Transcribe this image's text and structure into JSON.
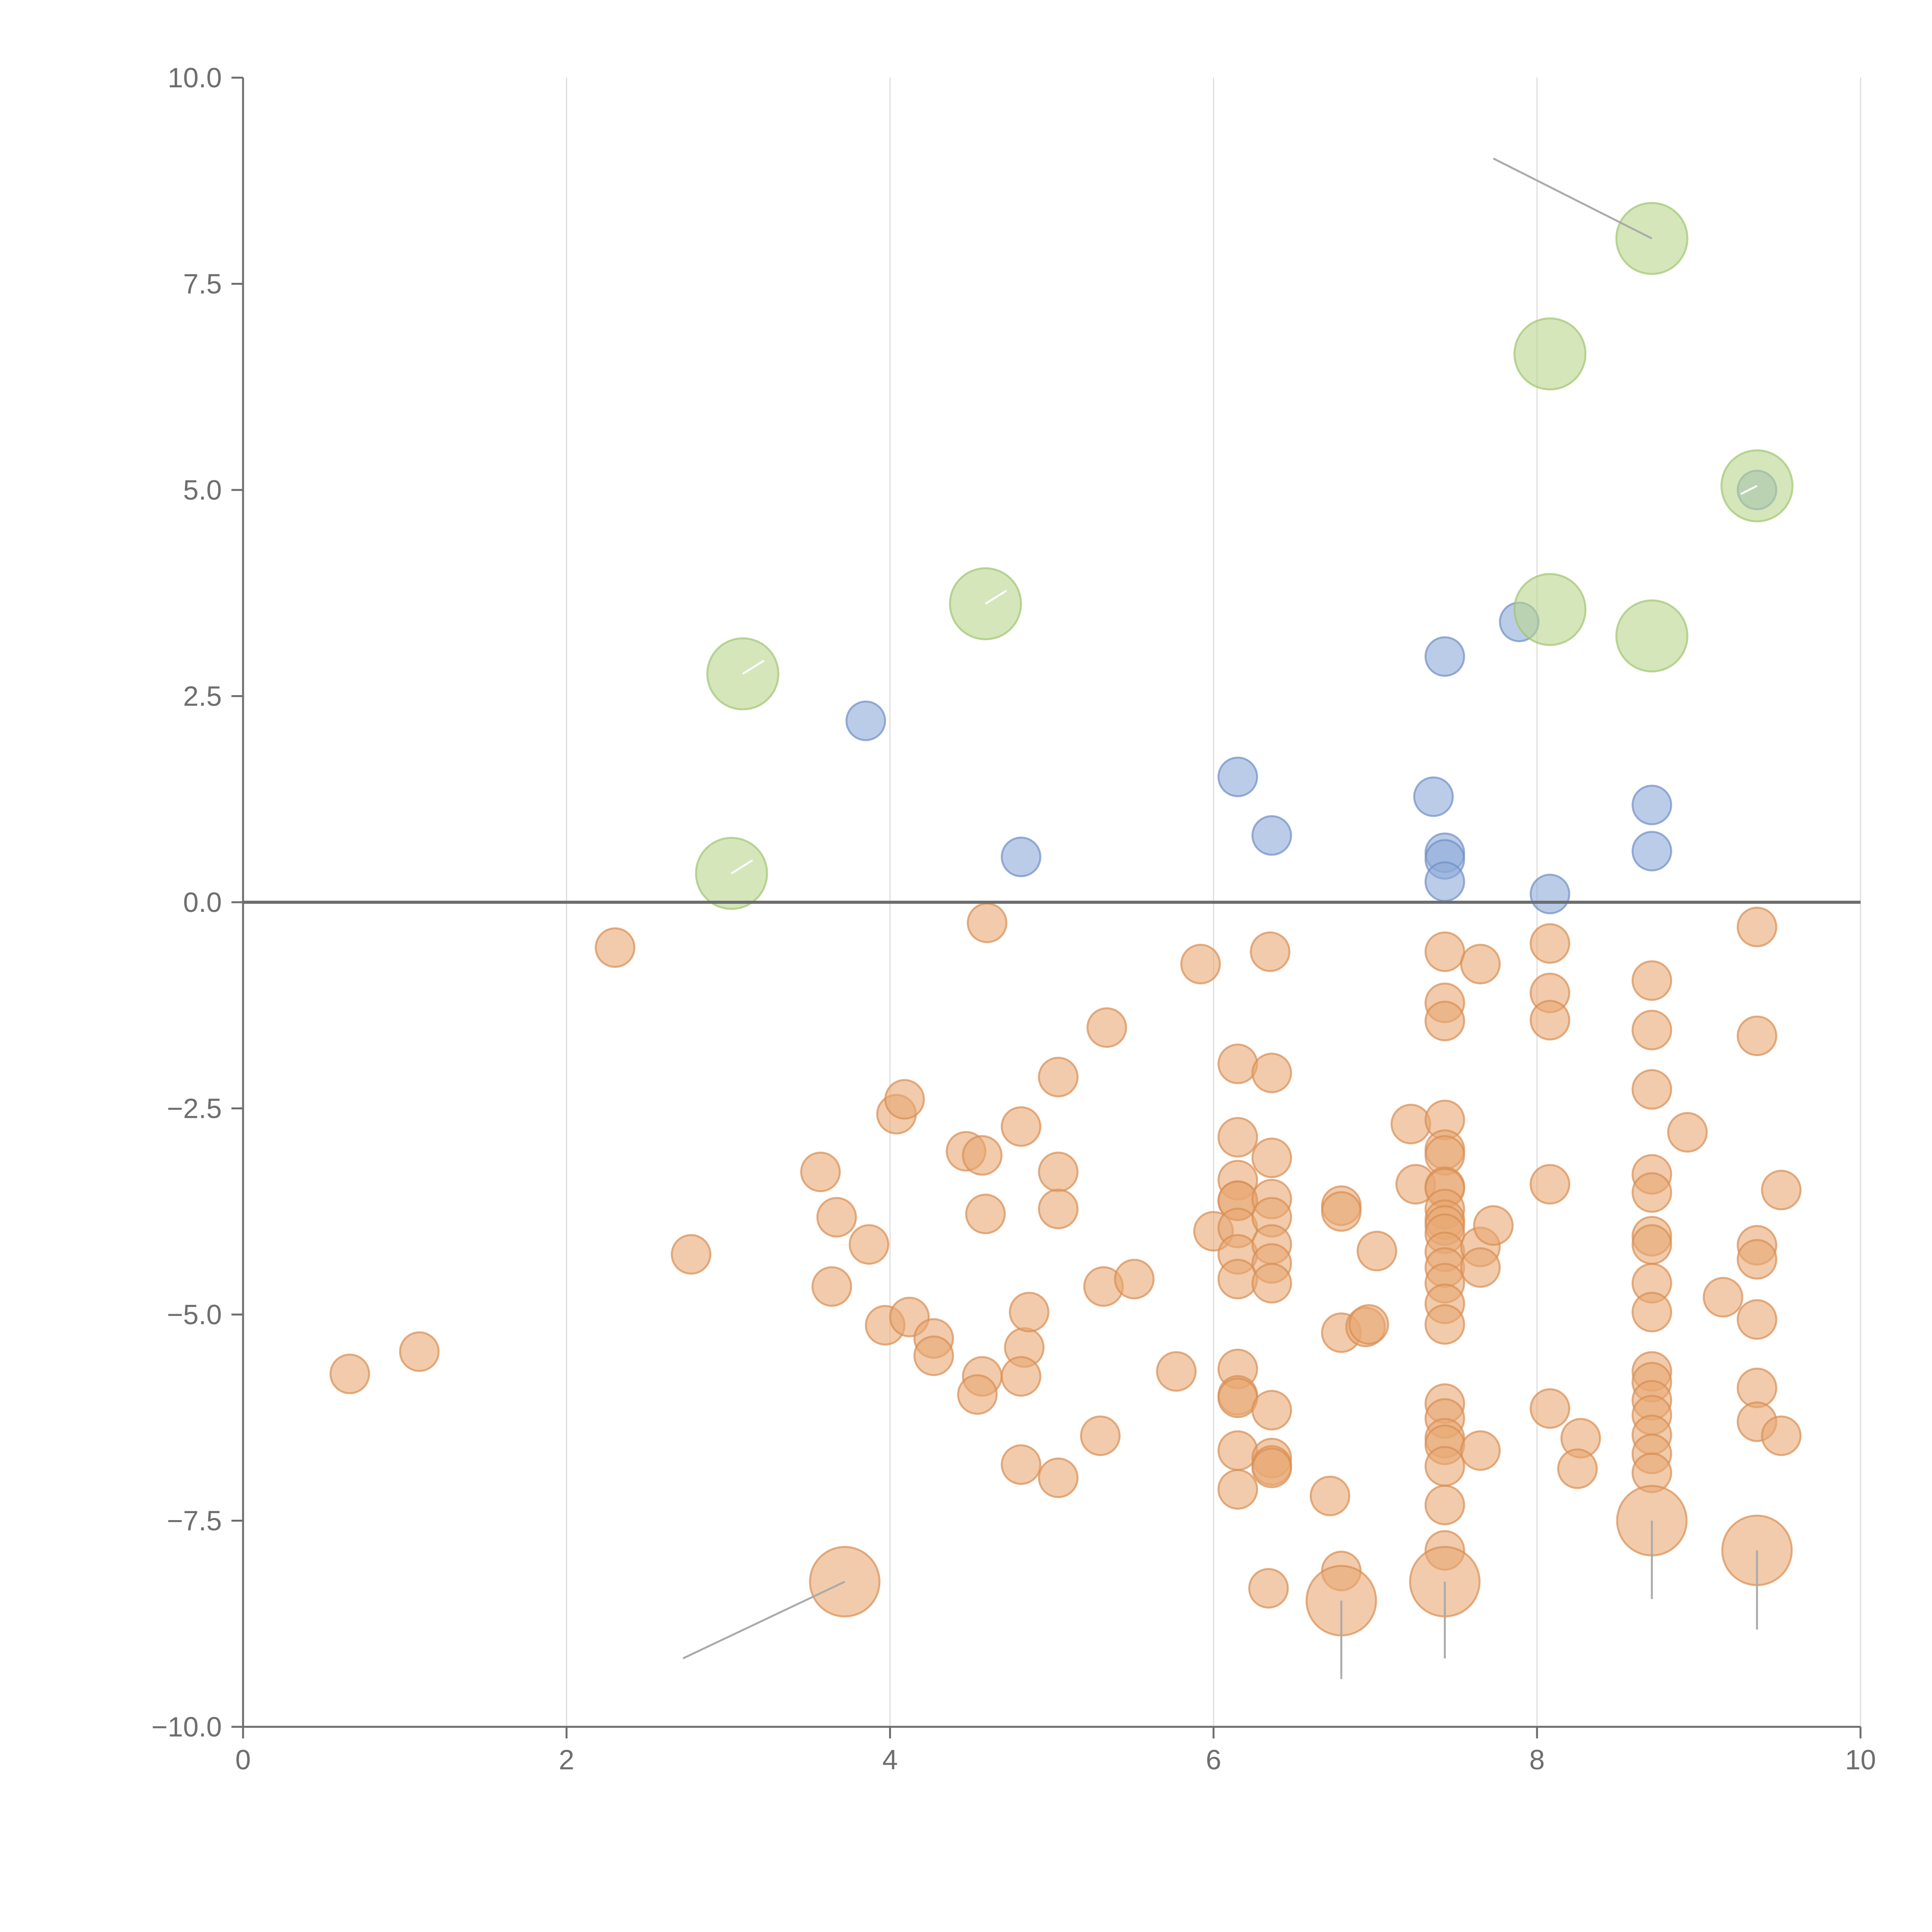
{
  "chart_data": {
    "type": "scatter",
    "title": "",
    "xlabel": "",
    "ylabel": "",
    "xlim": [
      0,
      10
    ],
    "ylim": [
      -10,
      10
    ],
    "x_ticks": [
      "0",
      "2",
      "4",
      "6",
      "8",
      "10"
    ],
    "y_ticks": [
      "−10.0",
      "−7.5",
      "−5.0",
      "−2.5",
      "0.0",
      "2.5",
      "5.0",
      "7.5",
      "10.0"
    ],
    "grid": "vertical lines only",
    "reference_line_y": 0,
    "colors": {
      "orange": "#e8a873",
      "blue": "#8eaad8",
      "green": "#b9d68e",
      "axis": "#6e6e6e",
      "grid": "#dddddd",
      "leader": "#aaaaaa"
    },
    "series": [
      {
        "name": "orange",
        "color": "#e8a873",
        "points": [
          [
            2.3,
            -0.55
          ],
          [
            4.6,
            -0.25
          ],
          [
            5.92,
            -0.75
          ],
          [
            6.35,
            -0.6
          ],
          [
            7.43,
            -0.6
          ],
          [
            7.65,
            -0.75
          ],
          [
            8.08,
            -0.5
          ],
          [
            9.36,
            -0.3
          ],
          [
            0.66,
            -5.72
          ],
          [
            1.09,
            -5.45
          ],
          [
            2.77,
            -4.27
          ],
          [
            3.57,
            -3.27
          ],
          [
            3.67,
            -3.82
          ],
          [
            3.87,
            -4.15
          ],
          [
            3.64,
            -4.66
          ],
          [
            3.97,
            -5.13
          ],
          [
            4.04,
            -2.57
          ],
          [
            4.09,
            -2.39
          ],
          [
            4.12,
            -5.03
          ],
          [
            4.27,
            -5.29
          ],
          [
            4.27,
            -5.5
          ],
          [
            4.47,
            -3.02
          ],
          [
            4.57,
            -3.07
          ],
          [
            4.59,
            -3.78
          ],
          [
            4.57,
            -5.75
          ],
          [
            4.54,
            -5.97
          ],
          [
            4.81,
            -2.72
          ],
          [
            4.83,
            -5.4
          ],
          [
            4.86,
            -4.97
          ],
          [
            4.81,
            -5.75
          ],
          [
            4.81,
            -6.82
          ],
          [
            5.04,
            -2.12
          ],
          [
            5.04,
            -3.27
          ],
          [
            5.04,
            -3.72
          ],
          [
            5.04,
            -6.98
          ],
          [
            5.34,
            -1.52
          ],
          [
            5.32,
            -4.66
          ],
          [
            5.51,
            -4.57
          ],
          [
            5.3,
            -6.47
          ],
          [
            5.77,
            -5.69
          ],
          [
            6.0,
            -3.99
          ],
          [
            6.15,
            -1.96
          ],
          [
            6.15,
            -2.85
          ],
          [
            6.15,
            -3.37
          ],
          [
            6.15,
            -3.62
          ],
          [
            6.15,
            -3.62
          ],
          [
            6.15,
            -3.95
          ],
          [
            6.15,
            -4.27
          ],
          [
            6.15,
            -4.57
          ],
          [
            6.15,
            -5.66
          ],
          [
            6.15,
            -5.98
          ],
          [
            6.15,
            -6.01
          ],
          [
            6.15,
            -6.65
          ],
          [
            6.15,
            -7.12
          ],
          [
            6.36,
            -2.07
          ],
          [
            6.36,
            -3.1
          ],
          [
            6.36,
            -3.6
          ],
          [
            6.36,
            -3.82
          ],
          [
            6.36,
            -4.15
          ],
          [
            6.36,
            -4.38
          ],
          [
            6.36,
            -4.62
          ],
          [
            6.36,
            -6.16
          ],
          [
            6.36,
            -6.74
          ],
          [
            6.36,
            -6.83
          ],
          [
            6.36,
            -6.86
          ],
          [
            6.34,
            -8.32
          ],
          [
            6.72,
            -7.2
          ],
          [
            6.79,
            -3.68
          ],
          [
            6.79,
            -3.75
          ],
          [
            6.79,
            -5.22
          ],
          [
            6.79,
            -8.11
          ],
          [
            6.94,
            -5.15
          ],
          [
            6.96,
            -5.12
          ],
          [
            7.01,
            -4.23
          ],
          [
            7.22,
            -2.69
          ],
          [
            7.25,
            -3.42
          ],
          [
            7.43,
            -1.22
          ],
          [
            7.43,
            -1.44
          ],
          [
            7.43,
            -2.64
          ],
          [
            7.43,
            -3.0
          ],
          [
            7.43,
            -3.07
          ],
          [
            7.43,
            -3.45
          ],
          [
            7.43,
            -3.47
          ],
          [
            7.43,
            -3.72
          ],
          [
            7.43,
            -3.85
          ],
          [
            7.43,
            -3.92
          ],
          [
            7.43,
            -4.02
          ],
          [
            7.43,
            -4.24
          ],
          [
            7.43,
            -4.43
          ],
          [
            7.43,
            -4.62
          ],
          [
            7.43,
            -4.87
          ],
          [
            7.43,
            -5.12
          ],
          [
            7.43,
            -6.08
          ],
          [
            7.43,
            -6.26
          ],
          [
            7.43,
            -6.5
          ],
          [
            7.43,
            -6.58
          ],
          [
            7.43,
            -6.84
          ],
          [
            7.43,
            -7.31
          ],
          [
            7.43,
            -7.86
          ],
          [
            7.65,
            -4.18
          ],
          [
            7.65,
            -4.43
          ],
          [
            7.65,
            -6.65
          ],
          [
            7.73,
            -3.92
          ],
          [
            8.08,
            -1.1
          ],
          [
            8.08,
            -1.43
          ],
          [
            8.08,
            -3.42
          ],
          [
            8.08,
            -6.14
          ],
          [
            8.27,
            -6.5
          ],
          [
            8.25,
            -6.87
          ],
          [
            8.71,
            -0.95
          ],
          [
            8.71,
            -1.55
          ],
          [
            8.71,
            -2.27
          ],
          [
            8.71,
            -3.3
          ],
          [
            8.71,
            -3.52
          ],
          [
            8.71,
            -4.05
          ],
          [
            8.71,
            -4.15
          ],
          [
            8.71,
            -4.62
          ],
          [
            8.71,
            -4.97
          ],
          [
            8.71,
            -5.69
          ],
          [
            8.71,
            -5.82
          ],
          [
            8.71,
            -6.04
          ],
          [
            8.71,
            -6.22
          ],
          [
            8.71,
            -6.46
          ],
          [
            8.71,
            -6.69
          ],
          [
            8.71,
            -6.92
          ],
          [
            8.93,
            -2.79
          ],
          [
            9.15,
            -4.79
          ],
          [
            9.36,
            -1.62
          ],
          [
            9.36,
            -4.16
          ],
          [
            9.36,
            -4.33
          ],
          [
            9.36,
            -5.06
          ],
          [
            9.36,
            -5.89
          ],
          [
            9.36,
            -6.3
          ],
          [
            9.51,
            -3.49
          ],
          [
            9.51,
            -6.47
          ]
        ]
      },
      {
        "name": "orange-large",
        "color": "#e8a873",
        "points": [
          [
            3.72,
            -8.24
          ],
          [
            6.79,
            -8.47
          ],
          [
            7.43,
            -8.24
          ],
          [
            8.71,
            -7.5
          ],
          [
            9.36,
            -7.86
          ]
        ]
      },
      {
        "name": "blue",
        "color": "#8eaad8",
        "points": [
          [
            3.85,
            2.2
          ],
          [
            4.81,
            0.55
          ],
          [
            6.15,
            1.52
          ],
          [
            6.36,
            0.81
          ],
          [
            7.36,
            1.28
          ],
          [
            7.43,
            2.98
          ],
          [
            7.43,
            0.6
          ],
          [
            7.43,
            0.52
          ],
          [
            7.43,
            0.25
          ],
          [
            7.89,
            3.4
          ],
          [
            8.08,
            0.1
          ],
          [
            8.71,
            1.18
          ],
          [
            8.71,
            0.62
          ],
          [
            9.36,
            5.0
          ]
        ]
      },
      {
        "name": "green-large",
        "color": "#b9d68e",
        "points": [
          [
            3.02,
            0.35
          ],
          [
            3.09,
            2.77
          ],
          [
            4.59,
            3.62
          ],
          [
            8.08,
            6.65
          ],
          [
            8.08,
            3.55
          ],
          [
            8.71,
            8.05
          ],
          [
            8.71,
            3.23
          ],
          [
            9.36,
            5.05
          ]
        ]
      }
    ],
    "annotations": [
      {
        "from": [
          3.72,
          -8.24
        ],
        "to": [
          2.72,
          -9.17
        ]
      },
      {
        "from": [
          6.79,
          -8.47
        ],
        "to": [
          6.79,
          -9.42
        ]
      },
      {
        "from": [
          7.43,
          -8.24
        ],
        "to": [
          7.43,
          -9.17
        ]
      },
      {
        "from": [
          8.71,
          -7.5
        ],
        "to": [
          8.71,
          -8.45
        ]
      },
      {
        "from": [
          9.36,
          -7.86
        ],
        "to": [
          9.36,
          -8.82
        ]
      },
      {
        "from": [
          8.71,
          8.05
        ],
        "to": [
          7.73,
          9.02
        ]
      },
      {
        "from": [
          3.09,
          2.77
        ],
        "to": [
          3.22,
          2.93
        ]
      },
      {
        "from": [
          4.59,
          3.62
        ],
        "to": [
          4.72,
          3.78
        ]
      },
      {
        "from": [
          3.02,
          0.35
        ],
        "to": [
          3.15,
          0.51
        ]
      },
      {
        "from": [
          9.36,
          5.05
        ],
        "to": [
          9.26,
          4.95
        ]
      }
    ]
  }
}
